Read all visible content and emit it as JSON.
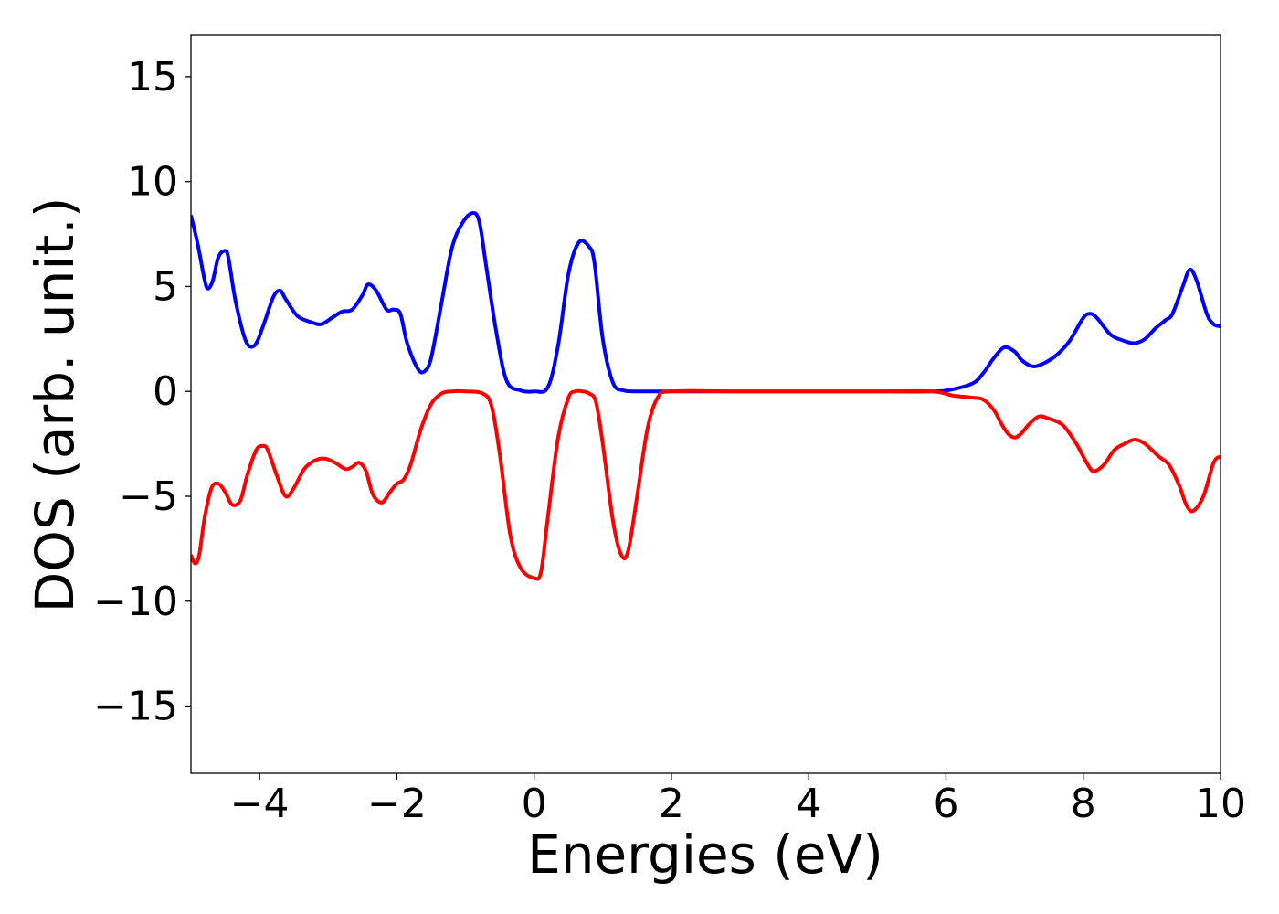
{
  "chart_data": {
    "type": "line",
    "title": "",
    "xlabel": "Energies (eV)",
    "ylabel": "DOS (arb. unit.)",
    "xlim": [
      -5,
      10
    ],
    "ylim": [
      -18.2,
      17
    ],
    "grid": false,
    "legend": "none",
    "x_ticks": [
      -4,
      -2,
      0,
      2,
      4,
      6,
      8,
      10
    ],
    "y_ticks": [
      -15,
      -10,
      -5,
      0,
      5,
      10,
      15
    ],
    "x_tick_labels": [
      "−4",
      "−2",
      "0",
      "2",
      "4",
      "6",
      "8",
      "10"
    ],
    "y_tick_labels": [
      "−15",
      "−10",
      "−5",
      "0",
      "5",
      "10",
      "15"
    ],
    "series": [
      {
        "color": "#0000ff",
        "x": [
          -5.0,
          -4.9,
          -4.8,
          -4.75,
          -4.68,
          -4.6,
          -4.5,
          -4.45,
          -4.35,
          -4.2,
          -4.07,
          -3.95,
          -3.8,
          -3.7,
          -3.62,
          -3.45,
          -3.25,
          -3.1,
          -2.95,
          -2.8,
          -2.65,
          -2.5,
          -2.42,
          -2.3,
          -2.15,
          -2.05,
          -1.95,
          -1.85,
          -1.7,
          -1.6,
          -1.5,
          -1.35,
          -1.2,
          -1.05,
          -0.9,
          -0.8,
          -0.7,
          -0.55,
          -0.4,
          -0.2,
          0.0,
          0.2,
          0.35,
          0.5,
          0.65,
          0.8,
          0.88,
          1.0,
          1.15,
          1.3,
          1.45,
          1.6,
          1.8,
          2.0,
          3.0,
          4.0,
          5.0,
          5.8,
          6.1,
          6.4,
          6.55,
          6.7,
          6.85,
          7.0,
          7.1,
          7.25,
          7.4,
          7.6,
          7.8,
          8.0,
          8.1,
          8.2,
          8.4,
          8.6,
          8.75,
          8.9,
          9.05,
          9.2,
          9.3,
          9.45,
          9.55,
          9.65,
          9.8,
          9.9,
          10.0
        ],
        "y": [
          8.4,
          7.0,
          5.3,
          4.9,
          5.3,
          6.4,
          6.7,
          6.3,
          4.3,
          2.4,
          2.2,
          3.1,
          4.5,
          4.8,
          4.4,
          3.6,
          3.3,
          3.2,
          3.5,
          3.8,
          3.9,
          4.6,
          5.1,
          4.8,
          3.9,
          3.9,
          3.7,
          2.3,
          1.1,
          0.95,
          1.6,
          4.2,
          6.8,
          8.0,
          8.5,
          8.1,
          6.0,
          2.8,
          0.5,
          0.05,
          0.0,
          0.2,
          2.2,
          5.6,
          7.1,
          6.9,
          6.1,
          2.5,
          0.4,
          0.05,
          0.0,
          0.0,
          0.0,
          0.0,
          0.0,
          0.0,
          0.0,
          0.0,
          0.1,
          0.4,
          0.9,
          1.6,
          2.1,
          1.9,
          1.5,
          1.2,
          1.3,
          1.7,
          2.4,
          3.5,
          3.7,
          3.5,
          2.7,
          2.4,
          2.3,
          2.5,
          3.0,
          3.4,
          3.7,
          5.0,
          5.8,
          5.3,
          3.7,
          3.2,
          3.1
        ]
      },
      {
        "color": "#ff0000",
        "x": [
          -5.0,
          -4.94,
          -4.88,
          -4.8,
          -4.7,
          -4.6,
          -4.5,
          -4.4,
          -4.28,
          -4.18,
          -4.05,
          -3.95,
          -3.88,
          -3.75,
          -3.62,
          -3.5,
          -3.35,
          -3.2,
          -3.05,
          -2.9,
          -2.75,
          -2.65,
          -2.55,
          -2.45,
          -2.35,
          -2.22,
          -2.1,
          -2.0,
          -1.9,
          -1.8,
          -1.65,
          -1.5,
          -1.35,
          -1.2,
          -1.0,
          -0.75,
          -0.62,
          -0.5,
          -0.35,
          -0.2,
          0.0,
          0.1,
          0.2,
          0.35,
          0.5,
          0.6,
          0.7,
          0.8,
          0.9,
          1.0,
          1.15,
          1.27,
          1.37,
          1.5,
          1.65,
          1.8,
          2.0,
          3.0,
          4.0,
          5.0,
          5.8,
          6.1,
          6.4,
          6.55,
          6.7,
          6.8,
          6.9,
          7.0,
          7.1,
          7.2,
          7.35,
          7.5,
          7.7,
          7.9,
          8.05,
          8.15,
          8.3,
          8.45,
          8.6,
          8.75,
          8.9,
          9.1,
          9.25,
          9.4,
          9.5,
          9.6,
          9.75,
          9.9,
          10.0
        ],
        "y": [
          -7.8,
          -8.2,
          -7.8,
          -6.0,
          -4.6,
          -4.4,
          -4.8,
          -5.4,
          -5.2,
          -4.0,
          -2.8,
          -2.6,
          -2.8,
          -4.0,
          -5.0,
          -4.6,
          -3.7,
          -3.3,
          -3.2,
          -3.4,
          -3.7,
          -3.6,
          -3.4,
          -3.8,
          -4.9,
          -5.3,
          -4.8,
          -4.4,
          -4.2,
          -3.5,
          -1.8,
          -0.6,
          -0.1,
          0.0,
          0.0,
          -0.1,
          -0.7,
          -3.0,
          -6.8,
          -8.4,
          -8.9,
          -8.6,
          -6.0,
          -2.2,
          -0.3,
          0.0,
          0.0,
          -0.1,
          -0.5,
          -2.5,
          -6.2,
          -7.8,
          -7.6,
          -5.0,
          -1.8,
          -0.3,
          0.0,
          0.0,
          0.0,
          0.0,
          0.0,
          -0.2,
          -0.3,
          -0.4,
          -0.9,
          -1.5,
          -2.0,
          -2.2,
          -2.0,
          -1.6,
          -1.2,
          -1.3,
          -1.6,
          -2.5,
          -3.4,
          -3.8,
          -3.5,
          -2.8,
          -2.5,
          -2.3,
          -2.5,
          -3.1,
          -3.5,
          -4.5,
          -5.4,
          -5.7,
          -5.0,
          -3.4,
          -3.1
        ]
      }
    ]
  }
}
